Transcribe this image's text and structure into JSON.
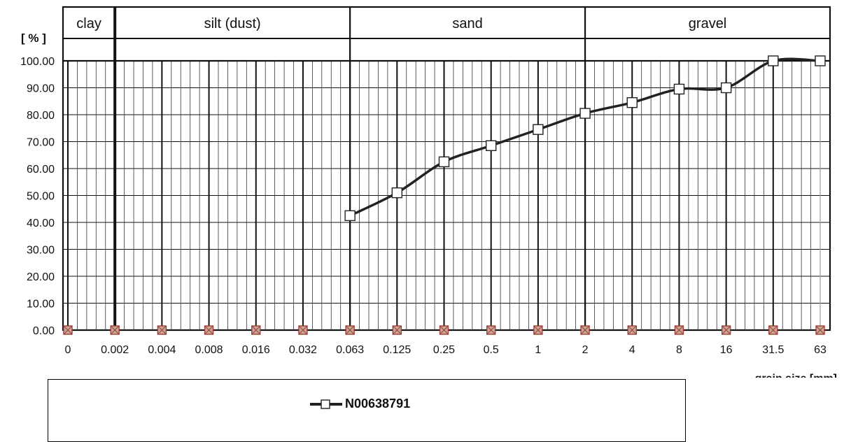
{
  "chart_data": {
    "type": "line",
    "y_axis_label": "[ % ]",
    "x_axis_label": "grain size [mm]",
    "y_ticks": [
      "0.00",
      "10.00",
      "20.00",
      "30.00",
      "40.00",
      "50.00",
      "60.00",
      "70.00",
      "80.00",
      "90.00",
      "100.00"
    ],
    "ylim": [
      0,
      100
    ],
    "x_categories": [
      "0",
      "0.002",
      "0.004",
      "0.008",
      "0.016",
      "0.032",
      "0.063",
      "0.125",
      "0.25",
      "0.5",
      "1",
      "2",
      "4",
      "8",
      "16",
      "31.5",
      "63"
    ],
    "soil_classes": [
      {
        "label": "clay",
        "from": "0",
        "to": "0.002"
      },
      {
        "label": "silt (dust)",
        "from": "0.002",
        "to": "0.063"
      },
      {
        "label": "sand",
        "from": "0.063",
        "to": "2"
      },
      {
        "label": "gravel",
        "from": "2",
        "to": "63"
      }
    ],
    "grid": true,
    "legend_position": "bottom",
    "series": [
      {
        "name": "N00638791",
        "color": "#222222",
        "marker": "open-square",
        "x": [
          "0.063",
          "0.125",
          "0.25",
          "0.5",
          "1",
          "2",
          "4",
          "8",
          "16",
          "31.5",
          "63"
        ],
        "y": [
          42.5,
          51.0,
          62.5,
          68.5,
          74.5,
          80.5,
          84.5,
          89.5,
          90.0,
          100.0,
          100.0
        ]
      }
    ],
    "zero_markers": {
      "x": [
        "0",
        "0.002",
        "0.004",
        "0.008",
        "0.016",
        "0.032",
        "0.063",
        "0.125",
        "0.25",
        "0.5",
        "1",
        "2",
        "4",
        "8",
        "16",
        "31.5",
        "63"
      ],
      "y": [
        0,
        0,
        0,
        0,
        0,
        0,
        0,
        0,
        0,
        0,
        0,
        0,
        0,
        0,
        0,
        0,
        0
      ],
      "color": "#a04030"
    }
  },
  "legend": {
    "series_label": "N00638791"
  }
}
